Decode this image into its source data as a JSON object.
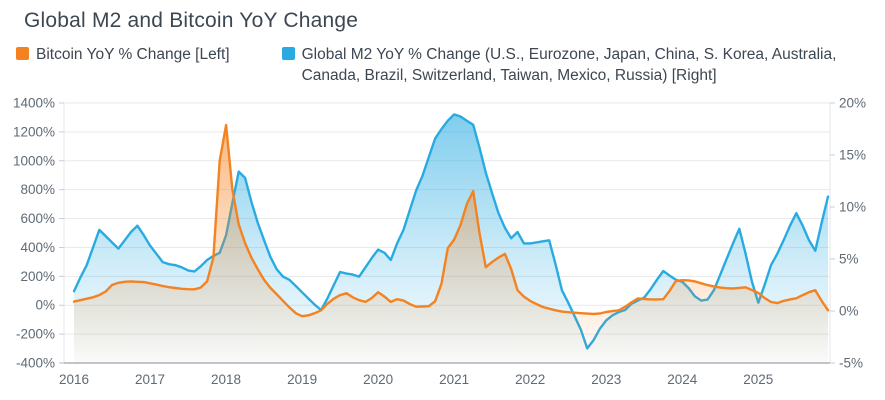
{
  "title": "Global M2 and Bitcoin YoY Change",
  "legend": [
    {
      "label": "Bitcoin YoY % Change [Left]",
      "color": "#f58220"
    },
    {
      "label": "Global M2 YoY % Change (U.S., Eurozone, Japan, China, S. Korea, Australia, Canada, Brazil, Switzerland, Taiwan, Mexico, Russia) [Right]",
      "color": "#29abe2"
    }
  ],
  "chart_data": {
    "type": "area",
    "x_start": "2016-01",
    "x_frequency": "monthly",
    "x_tick_labels": [
      "2016",
      "2017",
      "2018",
      "2019",
      "2020",
      "2021",
      "2022",
      "2023",
      "2024",
      "2025"
    ],
    "left_axis": {
      "title": "Bitcoin YoY % Change",
      "min": -400,
      "max": 1400,
      "tick_step": 200,
      "tick_values": [
        1400,
        1200,
        1000,
        800,
        600,
        400,
        200,
        0,
        -200,
        -400
      ],
      "tick_labels": [
        "1400%",
        "1200%",
        "1000%",
        "800%",
        "600%",
        "400%",
        "200%",
        "0%",
        "-200%",
        "-400%"
      ]
    },
    "right_axis": {
      "title": "Global M2 YoY % Change",
      "min": -5,
      "max": 20,
      "tick_step": 5,
      "tick_values": [
        20,
        15,
        10,
        5,
        0,
        -5
      ],
      "tick_labels": [
        "20%",
        "15%",
        "10%",
        "5%",
        "0%",
        "-5%"
      ]
    },
    "grid": "horizontal",
    "series": [
      {
        "name": "Bitcoin YoY % Change",
        "axis": "left",
        "color": "#f58220",
        "values": [
          25,
          35,
          45,
          55,
          70,
          95,
          140,
          155,
          162,
          165,
          162,
          160,
          152,
          143,
          133,
          125,
          119,
          114,
          111,
          110,
          122,
          165,
          330,
          1000,
          1247,
          800,
          560,
          430,
          330,
          250,
          175,
          120,
          75,
          30,
          -15,
          -55,
          -76,
          -70,
          -55,
          -35,
          10,
          45,
          70,
          83,
          55,
          35,
          23,
          50,
          90,
          60,
          23,
          42,
          32,
          8,
          -10,
          -9,
          -7,
          28,
          150,
          395,
          455,
          555,
          700,
          790,
          500,
          263,
          300,
          330,
          355,
          250,
          104,
          60,
          30,
          8,
          -12,
          -24,
          -35,
          -44,
          -48,
          -52,
          -55,
          -58,
          -60,
          -57,
          -47,
          -41,
          -35,
          -10,
          20,
          47,
          43,
          40,
          40,
          42,
          100,
          168,
          173,
          172,
          165,
          152,
          139,
          130,
          122,
          118,
          116,
          120,
          124,
          105,
          85,
          50,
          22,
          15,
          30,
          40,
          48,
          70,
          90,
          104,
          30,
          -35
        ]
      },
      {
        "name": "Global M2 YoY % Change",
        "axis": "right",
        "color": "#29abe2",
        "values": [
          1.9,
          3.2,
          4.4,
          6.1,
          7.8,
          7.2,
          6.6,
          6.0,
          6.8,
          7.6,
          8.2,
          7.3,
          6.3,
          5.5,
          4.7,
          4.5,
          4.4,
          4.2,
          3.9,
          3.8,
          4.3,
          4.9,
          5.3,
          5.6,
          7.3,
          10.4,
          13.4,
          12.8,
          10.5,
          8.5,
          6.8,
          5.2,
          4.0,
          3.3,
          3.0,
          2.4,
          1.8,
          1.2,
          0.6,
          0.1,
          1.2,
          2.5,
          3.75,
          3.6,
          3.5,
          3.3,
          4.2,
          5.1,
          5.9,
          5.6,
          4.9,
          6.5,
          7.8,
          9.7,
          11.6,
          13.0,
          14.8,
          16.6,
          17.5,
          18.3,
          18.9,
          18.7,
          18.3,
          17.9,
          15.7,
          13.3,
          11.3,
          9.4,
          8.0,
          7.0,
          7.6,
          6.5,
          6.5,
          6.6,
          6.7,
          6.8,
          4.5,
          2.0,
          0.8,
          -0.5,
          -1.8,
          -3.6,
          -2.8,
          -1.7,
          -0.9,
          -0.4,
          -0.1,
          0.1,
          0.7,
          1.0,
          1.3,
          2.1,
          3.0,
          3.85,
          3.4,
          3.0,
          2.8,
          2.2,
          1.4,
          1.0,
          1.1,
          2.0,
          3.5,
          5.0,
          6.5,
          7.9,
          5.5,
          2.8,
          0.8,
          2.5,
          4.4,
          5.5,
          6.8,
          8.2,
          9.4,
          8.2,
          6.8,
          5.8,
          8.5,
          11.0
        ]
      }
    ]
  },
  "colors": {
    "title_text": "#3d4752",
    "axis_text": "#5f6a75",
    "gridline": "#e9e9e9",
    "axis_line": "#9aa2ab"
  }
}
